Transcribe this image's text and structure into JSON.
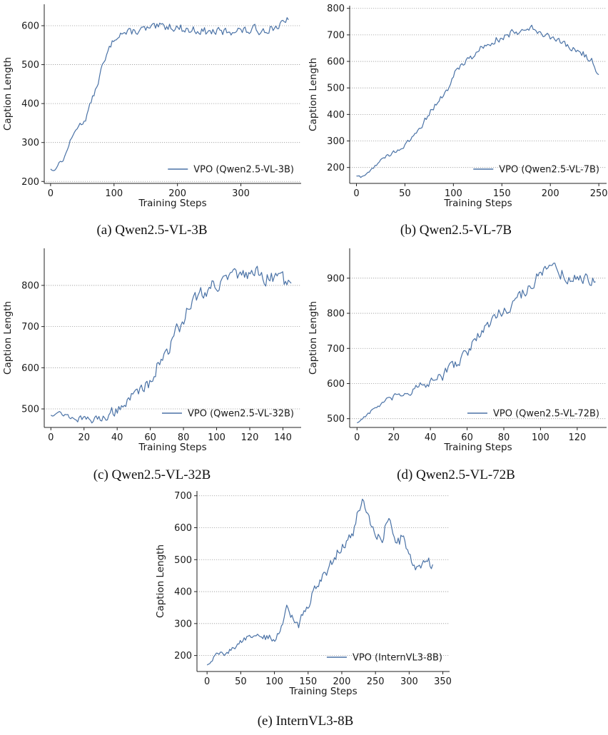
{
  "figure": {
    "captions": [
      "(a) Qwen2.5-VL-3B",
      "(b) Qwen2.5-VL-7B",
      "(c) Qwen2.5-VL-32B",
      "(d) Qwen2.5-VL-72B",
      "(e) InternVL3-8B"
    ]
  },
  "colors": {
    "line": "#4a72a6",
    "grid": "#9a9a9a",
    "axis": "#222222"
  },
  "chart_data": [
    {
      "type": "line",
      "xlabel": "Training Steps",
      "ylabel": "Caption Length",
      "xlim": [
        -10,
        395
      ],
      "ylim": [
        195,
        655
      ],
      "xticks": [
        0,
        100,
        200,
        300
      ],
      "yticks": [
        200,
        300,
        400,
        500,
        600
      ],
      "grid": "horizontal-dotted",
      "legend_position": "lower right",
      "series": [
        {
          "name": "VPO (Qwen2.5-VL-3B)",
          "anchors": [
            [
              0,
              232
            ],
            [
              5,
              226
            ],
            [
              10,
              240
            ],
            [
              15,
              250
            ],
            [
              20,
              255
            ],
            [
              25,
              275
            ],
            [
              30,
              300
            ],
            [
              35,
              315
            ],
            [
              40,
              335
            ],
            [
              45,
              345
            ],
            [
              50,
              350
            ],
            [
              55,
              360
            ],
            [
              60,
              385
            ],
            [
              65,
              410
            ],
            [
              70,
              430
            ],
            [
              75,
              455
            ],
            [
              80,
              490
            ],
            [
              85,
              505
            ],
            [
              90,
              530
            ],
            [
              95,
              550
            ],
            [
              100,
              565
            ],
            [
              105,
              575
            ],
            [
              110,
              582
            ],
            [
              120,
              580
            ],
            [
              130,
              585
            ],
            [
              140,
              588
            ],
            [
              150,
              590
            ],
            [
              160,
              592
            ],
            [
              170,
              595
            ],
            [
              180,
              598
            ],
            [
              190,
              600
            ],
            [
              200,
              595
            ],
            [
              210,
              592
            ],
            [
              220,
              588
            ],
            [
              230,
              590
            ],
            [
              240,
              586
            ],
            [
              250,
              583
            ],
            [
              260,
              585
            ],
            [
              270,
              582
            ],
            [
              280,
              585
            ],
            [
              290,
              590
            ],
            [
              300,
              588
            ],
            [
              310,
              585
            ],
            [
              320,
              590
            ],
            [
              330,
              588
            ],
            [
              340,
              592
            ],
            [
              350,
              595
            ],
            [
              360,
              600
            ],
            [
              370,
              605
            ],
            [
              375,
              615
            ]
          ],
          "noise": [
            4,
            16
          ]
        }
      ]
    },
    {
      "type": "line",
      "xlabel": "Training Steps",
      "ylabel": "Caption Length",
      "xlim": [
        -7,
        258
      ],
      "ylim": [
        140,
        810
      ],
      "xticks": [
        0,
        50,
        100,
        150,
        200,
        250
      ],
      "yticks": [
        200,
        300,
        400,
        500,
        600,
        700,
        800
      ],
      "grid": "horizontal-dotted",
      "legend_position": "lower right",
      "series": [
        {
          "name": "VPO (Qwen2.5-VL-7B)",
          "anchors": [
            [
              0,
              168
            ],
            [
              5,
              162
            ],
            [
              10,
              175
            ],
            [
              15,
              190
            ],
            [
              20,
              210
            ],
            [
              25,
              225
            ],
            [
              30,
              240
            ],
            [
              35,
              250
            ],
            [
              40,
              262
            ],
            [
              45,
              270
            ],
            [
              50,
              280
            ],
            [
              55,
              300
            ],
            [
              60,
              325
            ],
            [
              65,
              350
            ],
            [
              70,
              375
            ],
            [
              75,
              400
            ],
            [
              80,
              430
            ],
            [
              85,
              455
            ],
            [
              90,
              475
            ],
            [
              95,
              500
            ],
            [
              100,
              540
            ],
            [
              105,
              580
            ],
            [
              110,
              595
            ],
            [
              115,
              605
            ],
            [
              120,
              620
            ],
            [
              125,
              640
            ],
            [
              130,
              655
            ],
            [
              135,
              668
            ],
            [
              140,
              678
            ],
            [
              145,
              685
            ],
            [
              150,
              690
            ],
            [
              155,
              698
            ],
            [
              160,
              705
            ],
            [
              165,
              712
            ],
            [
              170,
              720
            ],
            [
              175,
              735
            ],
            [
              180,
              728
            ],
            [
              185,
              715
            ],
            [
              190,
              712
            ],
            [
              195,
              705
            ],
            [
              200,
              690
            ],
            [
              205,
              678
            ],
            [
              210,
              668
            ],
            [
              215,
              658
            ],
            [
              220,
              650
            ],
            [
              225,
              645
            ],
            [
              230,
              635
            ],
            [
              235,
              625
            ],
            [
              240,
              615
            ],
            [
              245,
              590
            ],
            [
              248,
              545
            ],
            [
              250,
              550
            ]
          ],
          "noise": [
            6,
            20
          ]
        }
      ]
    },
    {
      "type": "line",
      "xlabel": "Training Steps",
      "ylabel": "Caption Length",
      "xlim": [
        -4,
        151
      ],
      "ylim": [
        455,
        890
      ],
      "xticks": [
        0,
        20,
        40,
        60,
        80,
        100,
        120,
        140
      ],
      "yticks": [
        500,
        600,
        700,
        800
      ],
      "grid": "horizontal-dotted",
      "legend_position": "lower right",
      "series": [
        {
          "name": "VPO (Qwen2.5-VL-32B)",
          "anchors": [
            [
              0,
              485
            ],
            [
              5,
              492
            ],
            [
              10,
              482
            ],
            [
              15,
              478
            ],
            [
              20,
              474
            ],
            [
              25,
              472
            ],
            [
              30,
              478
            ],
            [
              35,
              488
            ],
            [
              40,
              500
            ],
            [
              45,
              515
            ],
            [
              50,
              530
            ],
            [
              55,
              550
            ],
            [
              60,
              570
            ],
            [
              65,
              610
            ],
            [
              70,
              640
            ],
            [
              75,
              680
            ],
            [
              80,
              720
            ],
            [
              85,
              760
            ],
            [
              90,
              780
            ],
            [
              95,
              795
            ],
            [
              100,
              805
            ],
            [
              105,
              815
            ],
            [
              110,
              818
            ],
            [
              115,
              820
            ],
            [
              120,
              830
            ],
            [
              125,
              825
            ],
            [
              130,
              820
            ],
            [
              135,
              815
            ],
            [
              140,
              810
            ],
            [
              145,
              805
            ]
          ],
          "noise": [
            5,
            25
          ]
        }
      ]
    },
    {
      "type": "line",
      "xlabel": "Training Steps",
      "ylabel": "Caption Length",
      "xlim": [
        -4,
        136
      ],
      "ylim": [
        475,
        985
      ],
      "xticks": [
        0,
        20,
        40,
        60,
        80,
        100,
        120
      ],
      "yticks": [
        500,
        600,
        700,
        800,
        900
      ],
      "grid": "horizontal-dotted",
      "legend_position": "lower right",
      "series": [
        {
          "name": "VPO (Qwen2.5-VL-72B)",
          "anchors": [
            [
              0,
              488
            ],
            [
              5,
              510
            ],
            [
              10,
              530
            ],
            [
              15,
              548
            ],
            [
              20,
              560
            ],
            [
              25,
              570
            ],
            [
              30,
              580
            ],
            [
              35,
              592
            ],
            [
              40,
              600
            ],
            [
              45,
              615
            ],
            [
              50,
              640
            ],
            [
              55,
              665
            ],
            [
              60,
              690
            ],
            [
              65,
              725
            ],
            [
              70,
              760
            ],
            [
              75,
              790
            ],
            [
              80,
              810
            ],
            [
              85,
              830
            ],
            [
              90,
              855
            ],
            [
              95,
              885
            ],
            [
              100,
              910
            ],
            [
              105,
              930
            ],
            [
              110,
              920
            ],
            [
              115,
              900
            ],
            [
              120,
              895
            ],
            [
              125,
              905
            ],
            [
              130,
              890
            ]
          ],
          "noise": [
            5,
            24
          ]
        }
      ]
    },
    {
      "type": "line",
      "xlabel": "Training Steps",
      "ylabel": "Caption Length",
      "xlim": [
        -15,
        360
      ],
      "ylim": [
        150,
        715
      ],
      "xticks": [
        0,
        50,
        100,
        150,
        200,
        250,
        300,
        350
      ],
      "yticks": [
        200,
        300,
        400,
        500,
        600,
        700
      ],
      "grid": "horizontal-dotted",
      "legend_position": "lower right",
      "series": [
        {
          "name": "VPO (InternVL3-8B)",
          "anchors": [
            [
              0,
              170
            ],
            [
              5,
              175
            ],
            [
              10,
              195
            ],
            [
              15,
              210
            ],
            [
              20,
              208
            ],
            [
              25,
              205
            ],
            [
              30,
              210
            ],
            [
              40,
              225
            ],
            [
              50,
              245
            ],
            [
              60,
              255
            ],
            [
              70,
              260
            ],
            [
              80,
              258
            ],
            [
              90,
              255
            ],
            [
              100,
              250
            ],
            [
              110,
              285
            ],
            [
              115,
              335
            ],
            [
              120,
              350
            ],
            [
              125,
              330
            ],
            [
              130,
              300
            ],
            [
              135,
              285
            ],
            [
              140,
              315
            ],
            [
              150,
              360
            ],
            [
              160,
              410
            ],
            [
              170,
              440
            ],
            [
              180,
              470
            ],
            [
              190,
              510
            ],
            [
              200,
              545
            ],
            [
              210,
              560
            ],
            [
              220,
              600
            ],
            [
              225,
              660
            ],
            [
              230,
              680
            ],
            [
              235,
              660
            ],
            [
              240,
              630
            ],
            [
              245,
              600
            ],
            [
              250,
              580
            ],
            [
              255,
              570
            ],
            [
              260,
              560
            ],
            [
              265,
              610
            ],
            [
              270,
              640
            ],
            [
              275,
              600
            ],
            [
              280,
              560
            ],
            [
              285,
              555
            ],
            [
              290,
              575
            ],
            [
              295,
              550
            ],
            [
              300,
              520
            ],
            [
              305,
              480
            ],
            [
              310,
              465
            ],
            [
              315,
              470
            ],
            [
              320,
              490
            ],
            [
              325,
              510
            ],
            [
              330,
              490
            ],
            [
              335,
              485
            ]
          ],
          "noise": [
            6,
            22
          ]
        }
      ]
    }
  ]
}
